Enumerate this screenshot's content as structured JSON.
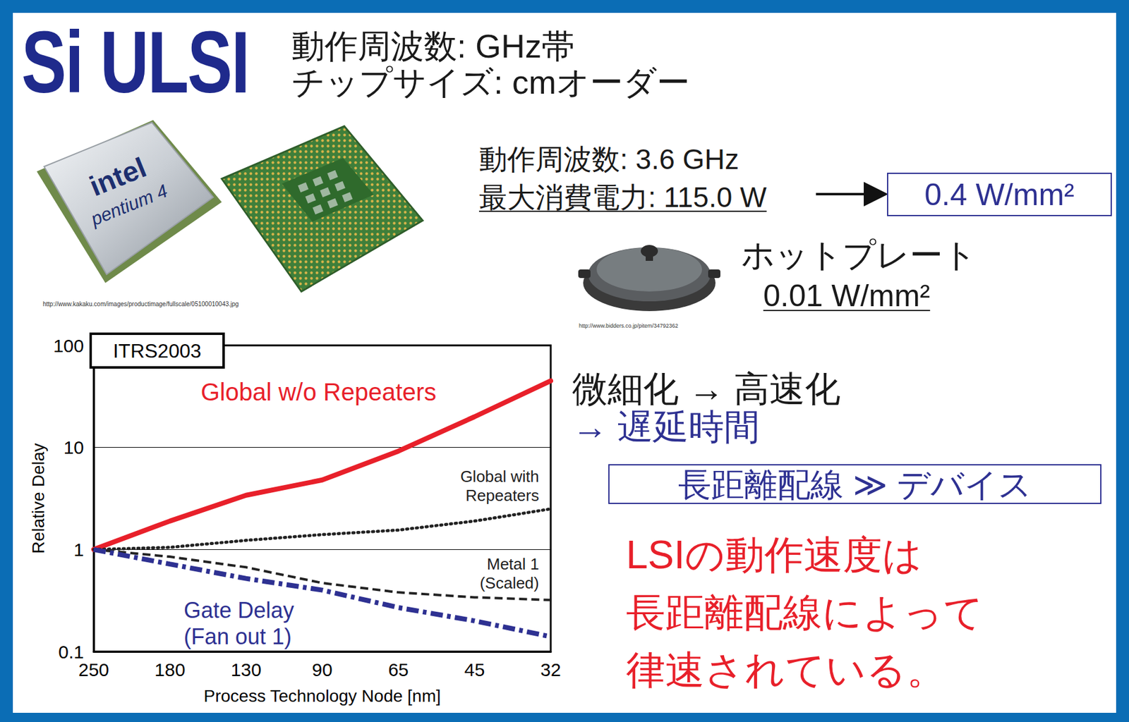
{
  "chart_data": {
    "type": "line",
    "title": "ITRS2003",
    "x_label": "Process Technology Node [nm]",
    "y_label": "Relative Delay",
    "categories": [
      "250",
      "180",
      "130",
      "90",
      "65",
      "45",
      "32"
    ],
    "log": "y",
    "ylim": [
      0.1,
      100
    ],
    "yticks": [
      0.1,
      1,
      10,
      100
    ],
    "grid": true,
    "series": [
      {
        "name": "Global w/o Repeaters",
        "color": "#e8202a",
        "line_style": "solid",
        "values": [
          1,
          1.9,
          3.4,
          4.8,
          9.2,
          20,
          45
        ]
      },
      {
        "name": "Global with Repeaters",
        "color": "#222222",
        "line_style": "dotted",
        "values": [
          1,
          1.05,
          1.23,
          1.4,
          1.55,
          1.9,
          2.5
        ]
      },
      {
        "name": "Metal 1 (Scaled)",
        "color": "#222222",
        "line_style": "dashed",
        "values": [
          1,
          0.85,
          0.67,
          0.47,
          0.38,
          0.34,
          0.32
        ]
      },
      {
        "name": "Gate Delay (Fan out 1)",
        "color": "#2e3192",
        "line_style": "dashdot",
        "values": [
          1,
          0.72,
          0.52,
          0.4,
          0.27,
          0.2,
          0.14
        ]
      }
    ]
  },
  "slide": {
    "heading": "Si ULSI",
    "specs": [
      "動作周波数: GHz帯",
      "チップサイズ: cmオーダー"
    ],
    "cpu_image": {
      "texts": [
        "intel",
        "pentium 4"
      ],
      "source": "http://www.kakaku.com/images/productimage/fullscale/05100010043.jpg"
    },
    "cpu_specs": [
      "動作周波数: 3.6 GHz",
      "最大消費電力: 115.0 W"
    ],
    "power_density": "0.4 W/mm²",
    "hotplate": {
      "label": "ホットプレート",
      "power_density": "0.01 W/mm²",
      "source": "http://www.bidders.co.jp/pitem/34792362"
    },
    "points": [
      "微細化 → 高速化",
      "→ 遅延時間"
    ],
    "boxed": "長距離配線 ≫ デバイス",
    "conclusion": [
      "LSIの動作速度は",
      "長距離配線によって",
      "律速されている。"
    ]
  }
}
